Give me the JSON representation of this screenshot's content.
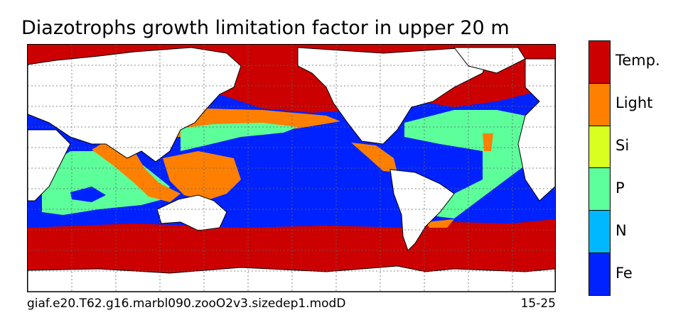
{
  "title": "Diazotrophs growth limitation factor in upper 20 m",
  "footer": {
    "case_name": "giaf.e20.T62.g16.marbl090.zooO2v3.sizedep1.modD",
    "years": "15-25"
  },
  "legend": {
    "items": [
      {
        "label": "Temp.",
        "color": "#cc0000"
      },
      {
        "label": "Light",
        "color": "#ff8000"
      },
      {
        "label": "Si",
        "color": "#d8ff20"
      },
      {
        "label": "P",
        "color": "#5cff9a"
      },
      {
        "label": "N",
        "color": "#00b8ff"
      },
      {
        "label": "Fe",
        "color": "#0022ff"
      }
    ]
  },
  "colors": {
    "land": "#ffffff",
    "coastline": "#000000",
    "grid": "#666666"
  }
}
